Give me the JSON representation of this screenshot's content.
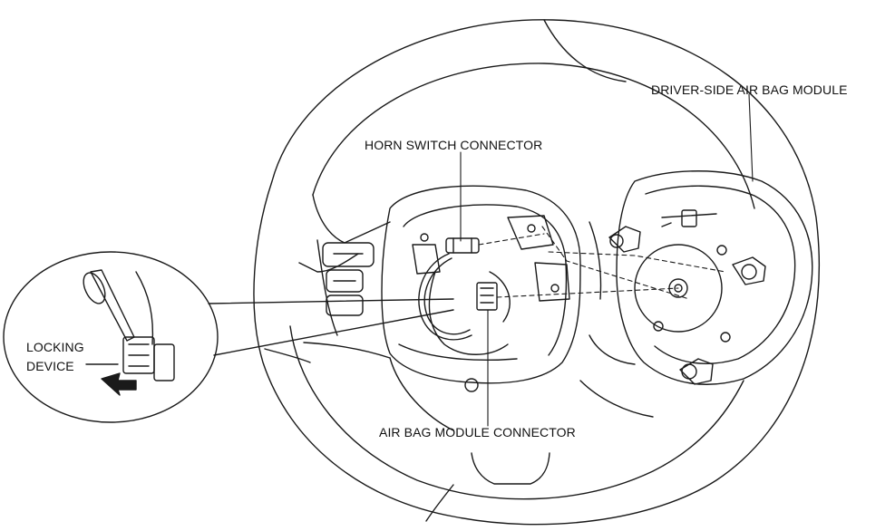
{
  "labels": {
    "horn_switch_connector": "HORN SWITCH CONNECTOR",
    "driver_side_air_bag_module": "DRIVER-SIDE AIR BAG MODULE",
    "air_bag_module_connector": "AIR BAG MODULE CONNECTOR",
    "locking_device_line1": "LOCKING",
    "locking_device_line2": "DEVICE"
  },
  "colors": {
    "line": "#1a1a1a",
    "background": "#ffffff"
  }
}
